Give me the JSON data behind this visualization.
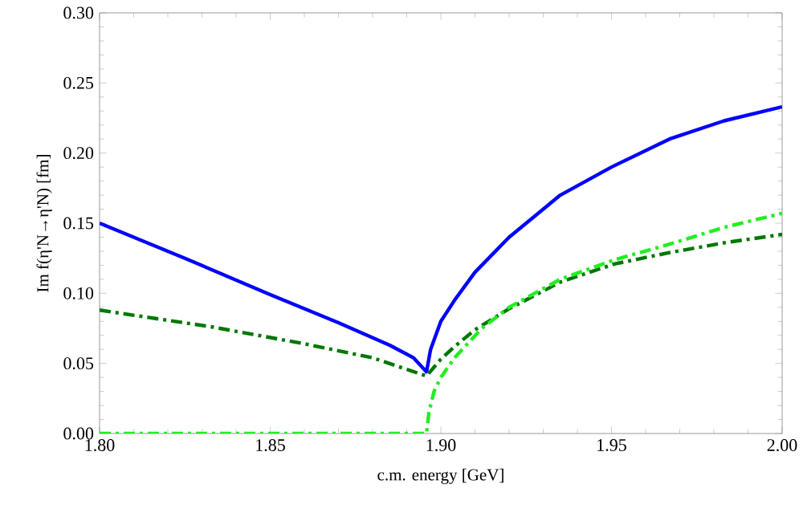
{
  "chart_data": {
    "type": "line",
    "xlabel": "c.m. energy [GeV]",
    "ylabel": "Im f(η'N→η'N)  [fm]",
    "xlim": [
      1.8,
      2.0
    ],
    "ylim": [
      0,
      0.3
    ],
    "xticks": [
      {
        "value": 1.8,
        "label": "1.80"
      },
      {
        "value": 1.85,
        "label": "1.85"
      },
      {
        "value": 1.9,
        "label": "1.90"
      },
      {
        "value": 1.95,
        "label": "1.95"
      },
      {
        "value": 2.0,
        "label": "2.00"
      }
    ],
    "yticks": [
      {
        "value": 0,
        "label": "0.00"
      },
      {
        "value": 0.05,
        "label": "0.05"
      },
      {
        "value": 0.1,
        "label": "0.10"
      },
      {
        "value": 0.15,
        "label": "0.15"
      },
      {
        "value": 0.2,
        "label": "0.20"
      },
      {
        "value": 0.25,
        "label": "0.25"
      },
      {
        "value": 0.3,
        "label": "0.30"
      }
    ],
    "grid": false,
    "marker": "none",
    "series": [
      {
        "color": "#0000ff",
        "line_style": "solid",
        "x": [
          1.8,
          1.825,
          1.85,
          1.87,
          1.885,
          1.892,
          1.8958,
          1.897,
          1.9,
          1.904,
          1.91,
          1.92,
          1.935,
          1.95,
          1.967,
          1.983,
          2.0
        ],
        "values": [
          0.15,
          0.125,
          0.099,
          0.079,
          0.063,
          0.054,
          0.044,
          0.06,
          0.08,
          0.095,
          0.115,
          0.14,
          0.17,
          0.19,
          0.21,
          0.223,
          0.233
        ]
      },
      {
        "color": "#007700",
        "line_style": "dashed",
        "x": [
          1.8,
          1.833,
          1.86,
          1.88,
          1.8958,
          1.9,
          1.904,
          1.91,
          1.92,
          1.935,
          1.951,
          1.967,
          1.983,
          2.0
        ],
        "values": [
          0.088,
          0.076,
          0.064,
          0.054,
          0.041,
          0.053,
          0.062,
          0.074,
          0.089,
          0.108,
          0.121,
          0.129,
          0.136,
          0.142
        ]
      },
      {
        "color": "#22ee22",
        "line_style": "dashed",
        "x": [
          1.8,
          1.8958,
          1.8965,
          1.898,
          1.9,
          1.904,
          1.912,
          1.92,
          1.935,
          1.951,
          1.967,
          1.983,
          2.0
        ],
        "values": [
          0,
          0,
          0.015,
          0.03,
          0.04,
          0.054,
          0.075,
          0.09,
          0.11,
          0.124,
          0.135,
          0.147,
          0.157
        ]
      }
    ]
  }
}
